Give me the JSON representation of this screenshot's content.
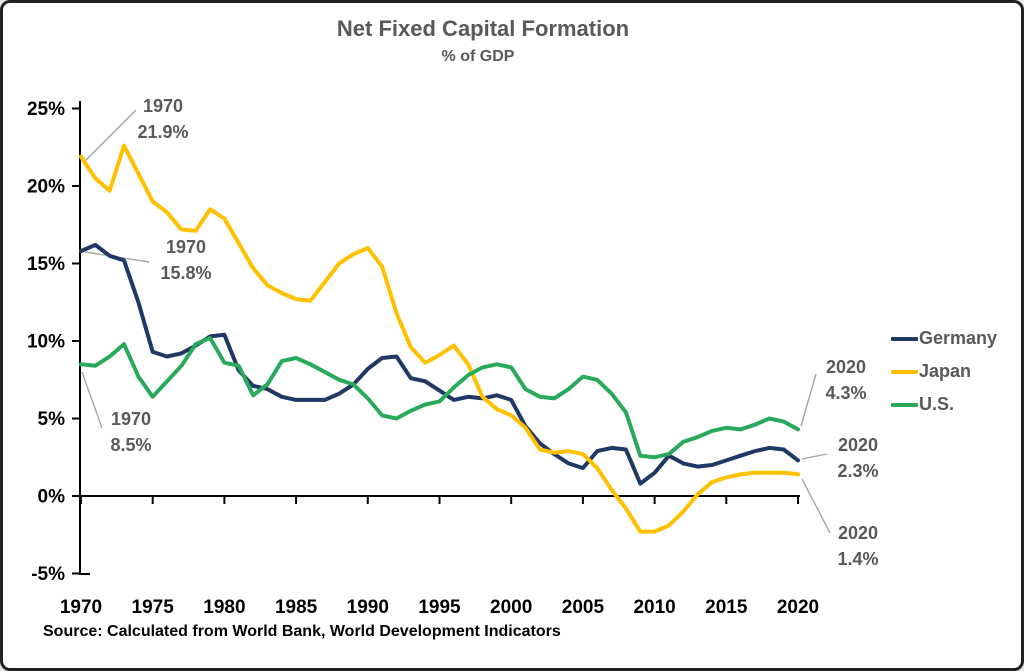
{
  "title": "Net Fixed Capital Formation",
  "subtitle": "% of GDP",
  "source": "Source: Calculated from World Bank, World Development Indicators",
  "colors": {
    "germany": "#1F3864",
    "japan": "#FFC000",
    "us": "#28AA5A",
    "heading_text": "#595959",
    "axis_text": "#000000",
    "leader_line": "#A6A6A6"
  },
  "legend": [
    {
      "label": "Germany",
      "color": "#1F3864"
    },
    {
      "label": "Japan",
      "color": "#FFC000"
    },
    {
      "label": "U.S.",
      "color": "#28AA5A"
    }
  ],
  "axes": {
    "y_tick_labels": [
      "25%",
      "20%",
      "15%",
      "10%",
      "5%",
      "0%",
      "-5%"
    ],
    "y_tick_values": [
      25,
      20,
      15,
      10,
      5,
      0,
      -5
    ],
    "x_tick_labels": [
      "1970",
      "1975",
      "1980",
      "1985",
      "1990",
      "1995",
      "2000",
      "2005",
      "2010",
      "2015",
      "2020"
    ],
    "x_tick_values": [
      1970,
      1975,
      1980,
      1985,
      1990,
      1995,
      2000,
      2005,
      2010,
      2015,
      2020
    ]
  },
  "annotations": [
    {
      "id": "japan-1970",
      "series": "Japan",
      "year": 1970,
      "value": 21.9,
      "lines": [
        "1970",
        "21.9%"
      ]
    },
    {
      "id": "germany-1970",
      "series": "Germany",
      "year": 1970,
      "value": 15.8,
      "lines": [
        "1970",
        "15.8%"
      ]
    },
    {
      "id": "us-1970",
      "series": "U.S.",
      "year": 1970,
      "value": 8.5,
      "lines": [
        "1970",
        "8.5%"
      ]
    },
    {
      "id": "us-2020",
      "series": "U.S.",
      "year": 2020,
      "value": 4.3,
      "lines": [
        "2020",
        "4.3%"
      ]
    },
    {
      "id": "germany-2020",
      "series": "Germany",
      "year": 2020,
      "value": 2.3,
      "lines": [
        "2020",
        "2.3%"
      ]
    },
    {
      "id": "japan-2020",
      "series": "Japan",
      "year": 2020,
      "value": 1.4,
      "lines": [
        "2020",
        "1.4%"
      ]
    }
  ],
  "chart_data": {
    "type": "line",
    "title": "Net Fixed Capital Formation",
    "subtitle": "% of GDP",
    "xlabel": "",
    "ylabel": "% of GDP",
    "ylim": [
      -5,
      25
    ],
    "xlim": [
      1970,
      2020
    ],
    "grid": false,
    "legend_position": "right",
    "x": [
      1970,
      1971,
      1972,
      1973,
      1974,
      1975,
      1976,
      1977,
      1978,
      1979,
      1980,
      1981,
      1982,
      1983,
      1984,
      1985,
      1986,
      1987,
      1988,
      1989,
      1990,
      1991,
      1992,
      1993,
      1994,
      1995,
      1996,
      1997,
      1998,
      1999,
      2000,
      2001,
      2002,
      2003,
      2004,
      2005,
      2006,
      2007,
      2008,
      2009,
      2010,
      2011,
      2012,
      2013,
      2014,
      2015,
      2016,
      2017,
      2018,
      2019,
      2020
    ],
    "series": [
      {
        "name": "Germany",
        "color": "#1F3864",
        "values": [
          15.8,
          16.2,
          15.5,
          15.2,
          12.5,
          9.3,
          9.0,
          9.2,
          9.7,
          10.3,
          10.4,
          8.1,
          7.1,
          6.9,
          6.4,
          6.2,
          6.2,
          6.2,
          6.6,
          7.2,
          8.2,
          8.9,
          9.0,
          7.6,
          7.4,
          6.8,
          6.2,
          6.4,
          6.3,
          6.5,
          6.2,
          4.5,
          3.4,
          2.7,
          2.1,
          1.8,
          2.9,
          3.1,
          3.0,
          0.8,
          1.5,
          2.6,
          2.1,
          1.9,
          2.0,
          2.3,
          2.6,
          2.9,
          3.1,
          3.0,
          2.3
        ]
      },
      {
        "name": "Japan",
        "color": "#FFC000",
        "values": [
          21.9,
          20.5,
          19.7,
          22.6,
          20.8,
          19.0,
          18.3,
          17.2,
          17.1,
          18.5,
          17.9,
          16.3,
          14.7,
          13.6,
          13.1,
          12.7,
          12.6,
          13.8,
          15.0,
          15.6,
          16.0,
          14.8,
          11.8,
          9.6,
          8.6,
          9.1,
          9.7,
          8.5,
          6.4,
          5.6,
          5.2,
          4.4,
          3.0,
          2.8,
          2.9,
          2.7,
          1.8,
          0.4,
          -0.8,
          -2.3,
          -2.3,
          -1.9,
          -1.0,
          0.1,
          0.9,
          1.2,
          1.4,
          1.5,
          1.5,
          1.5,
          1.4
        ]
      },
      {
        "name": "U.S.",
        "color": "#28AA5A",
        "values": [
          8.5,
          8.4,
          9.0,
          9.8,
          7.7,
          6.4,
          7.4,
          8.4,
          9.8,
          10.2,
          8.6,
          8.4,
          6.5,
          7.2,
          8.7,
          8.9,
          8.5,
          8.0,
          7.5,
          7.2,
          6.3,
          5.2,
          5.0,
          5.5,
          5.9,
          6.1,
          7.0,
          7.8,
          8.3,
          8.5,
          8.3,
          6.9,
          6.4,
          6.3,
          6.9,
          7.7,
          7.5,
          6.6,
          5.4,
          2.6,
          2.5,
          2.7,
          3.5,
          3.8,
          4.2,
          4.4,
          4.3,
          4.6,
          5.0,
          4.8,
          4.3
        ]
      }
    ]
  }
}
